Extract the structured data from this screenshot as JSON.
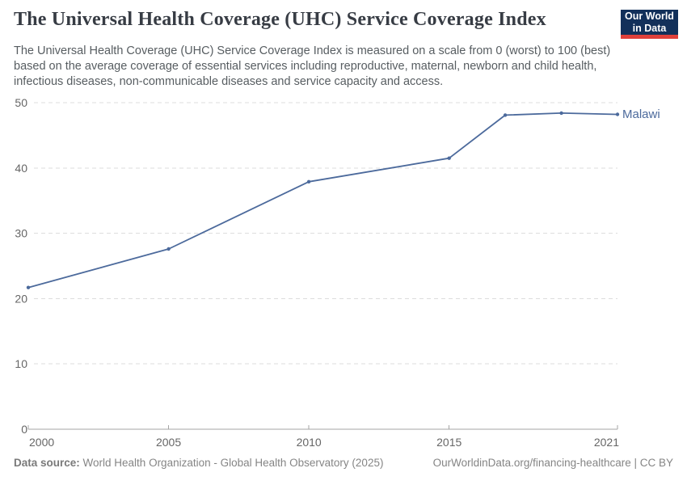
{
  "header": {
    "title": "The Universal Health Coverage (UHC) Service Coverage Index",
    "subtitle": "The Universal Health Coverage (UHC) Service Coverage Index is measured on a scale from 0 (worst) to 100 (best) based on the average coverage of essential services including reproductive, maternal, newborn and child health, infectious diseases, non-communicable diseases and service capacity and access.",
    "logo": {
      "line1": "Our World",
      "line2": "in Data",
      "bg_color": "#12305a",
      "accent_color": "#e0403a",
      "text_color": "#ffffff"
    }
  },
  "chart_data": {
    "type": "line",
    "title": "The Universal Health Coverage (UHC) Service Coverage Index",
    "xlabel": "",
    "ylabel": "",
    "xlim": [
      2000,
      2021
    ],
    "ylim": [
      0,
      50
    ],
    "xticks": [
      2000,
      2005,
      2010,
      2015,
      2021
    ],
    "yticks": [
      0,
      10,
      20,
      30,
      40,
      50
    ],
    "grid": "horizontal-dashed",
    "legend_position": "end-of-line-label",
    "series": [
      {
        "name": "Malawi",
        "color": "#4c6a9c",
        "x": [
          2000,
          2005,
          2010,
          2015,
          2017,
          2019,
          2021
        ],
        "values": [
          21.7,
          27.6,
          37.9,
          41.5,
          48.1,
          48.4,
          48.2
        ]
      }
    ]
  },
  "footer": {
    "datasource_label": "Data source:",
    "datasource_text": " World Health Organization - Global Health Observatory (2025)",
    "attribution": "OurWorldinData.org/financing-healthcare | CC BY"
  }
}
